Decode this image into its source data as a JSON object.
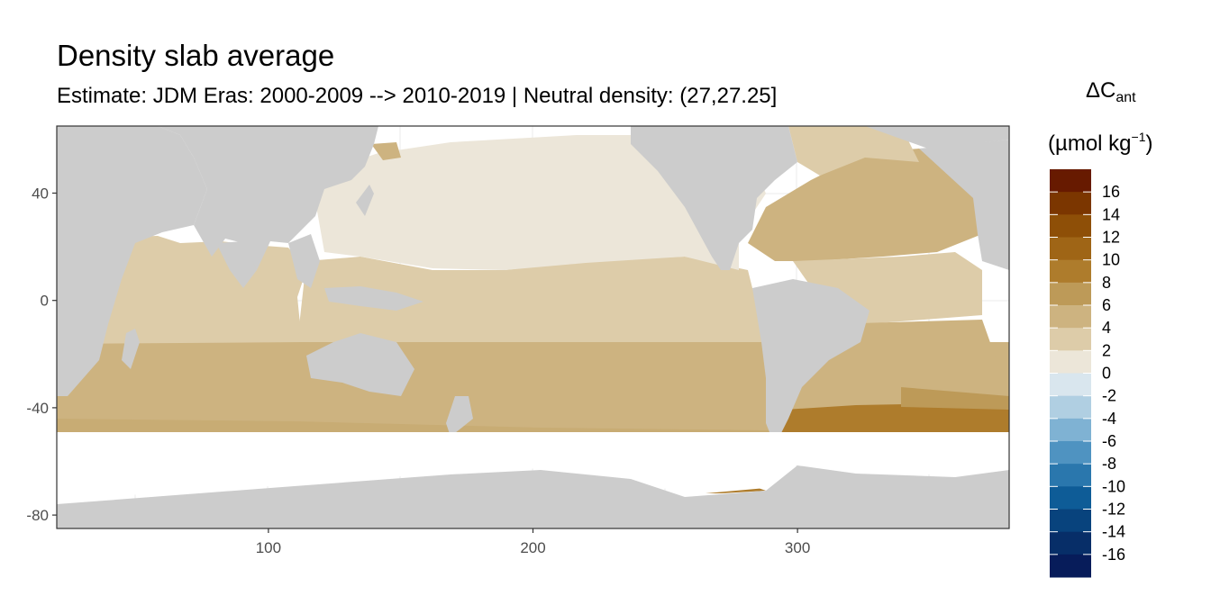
{
  "title": "Density slab average",
  "subtitle": "Estimate: JDM Eras: 2000-2009 --> 2010-2019 | Neutral density: (27,27.25]",
  "legend": {
    "title_symbol": "ΔC",
    "title_sub": "ant",
    "unit_prefix": "(µmol kg",
    "unit_sup": "−1",
    "unit_suffix": ")",
    "labels": [
      "16",
      "14",
      "12",
      "10",
      "8",
      "6",
      "4",
      "2",
      "0",
      "-2",
      "-4",
      "-6",
      "-8",
      "-10",
      "-12",
      "-14",
      "-16"
    ],
    "bins": [
      {
        "range": [
          16,
          18
        ],
        "color": "#671a00"
      },
      {
        "range": [
          14,
          16
        ],
        "color": "#7b3600"
      },
      {
        "range": [
          12,
          14
        ],
        "color": "#8e4f07"
      },
      {
        "range": [
          10,
          12
        ],
        "color": "#9f6516"
      },
      {
        "range": [
          8,
          10
        ],
        "color": "#ae7c2c"
      },
      {
        "range": [
          6,
          8
        ],
        "color": "#bd9a58"
      },
      {
        "range": [
          4,
          6
        ],
        "color": "#cdb380"
      },
      {
        "range": [
          2,
          4
        ],
        "color": "#ddcca9"
      },
      {
        "range": [
          0,
          2
        ],
        "color": "#ece6d9"
      },
      {
        "range": [
          -2,
          0
        ],
        "color": "#d9e6ee"
      },
      {
        "range": [
          -4,
          -2
        ],
        "color": "#b0cfe2"
      },
      {
        "range": [
          -6,
          -4
        ],
        "color": "#7fb2d3"
      },
      {
        "range": [
          -8,
          -6
        ],
        "color": "#4f93c1"
      },
      {
        "range": [
          -10,
          -8
        ],
        "color": "#2a77ad"
      },
      {
        "range": [
          -12,
          -10
        ],
        "color": "#0e5c97"
      },
      {
        "range": [
          -14,
          -12
        ],
        "color": "#08437d"
      },
      {
        "range": [
          -16,
          -14
        ],
        "color": "#072e68"
      },
      {
        "range": [
          -18,
          -16
        ],
        "color": "#071c5a"
      }
    ]
  },
  "map_data": {
    "type": "geographic-raster",
    "x_axis": {
      "range": [
        20,
        380
      ],
      "ticks": [
        "100",
        "200",
        "300"
      ],
      "tick_values": [
        100,
        200,
        300
      ]
    },
    "y_axis": {
      "range": [
        -85,
        65
      ],
      "ticks": [
        "40",
        "0",
        "-40",
        "-80"
      ],
      "tick_values": [
        40,
        0,
        -40,
        -80
      ]
    },
    "land_color": "#cccccc",
    "no_data_color": "#ffffff",
    "grid": true,
    "regions": [
      {
        "area": "North Pacific",
        "value": 1
      },
      {
        "area": "Equatorial Pacific",
        "value": 3
      },
      {
        "area": "Indian Ocean north",
        "value": 3
      },
      {
        "area": "Southern mid-latitude belt",
        "value": 5
      },
      {
        "area": "South Atlantic",
        "value": 5
      },
      {
        "area": "North Atlantic subtropical gyre",
        "value": 5
      },
      {
        "area": "Subarctic Atlantic",
        "value": 3
      },
      {
        "area": "Southern Atlantic sector near 45S",
        "value": 9
      },
      {
        "area": "Drake Passage / Scotia Sea",
        "value": 9
      },
      {
        "area": "Weddell/Antarctic coast patch",
        "value": 9
      }
    ]
  }
}
